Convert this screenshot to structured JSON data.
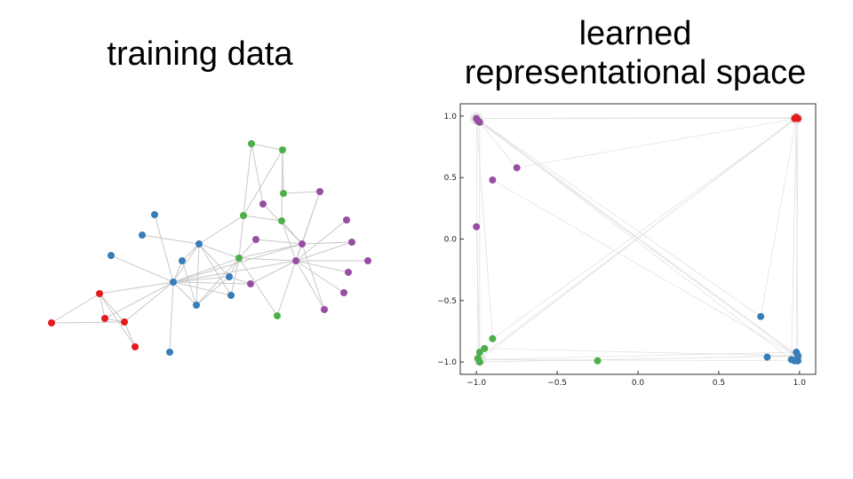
{
  "slide": {
    "left_title": "training data",
    "right_title_line1": "learned",
    "right_title_line2": "representational space"
  },
  "colors": {
    "red": "#e41a1c",
    "blue": "#377eb8",
    "green": "#4daf4a",
    "purple": "#984ea3",
    "edge": "#c8c8c8"
  },
  "chart_data": {
    "type": "scatter",
    "title": "",
    "xlabel": "",
    "ylabel": "",
    "xlim": [
      -1.1,
      1.1
    ],
    "ylim": [
      -1.1,
      1.1
    ],
    "xticks": [
      "-1.0",
      "-0.5",
      "0.0",
      "0.5",
      "1.0"
    ],
    "yticks": [
      "1.0",
      "0.5",
      "0.0",
      "-0.5",
      "-1.0"
    ],
    "series": [
      {
        "color": "red",
        "points": [
          [
            0.98,
            0.99
          ],
          [
            0.99,
            0.98
          ],
          [
            0.97,
            0.98
          ]
        ]
      },
      {
        "color": "purple",
        "points": [
          [
            -1.0,
            0.98
          ],
          [
            -0.99,
            0.96
          ],
          [
            -0.98,
            0.95
          ],
          [
            -0.75,
            0.58
          ],
          [
            -0.9,
            0.48
          ],
          [
            -1.0,
            0.1
          ]
        ]
      },
      {
        "color": "green",
        "points": [
          [
            -0.9,
            -0.81
          ],
          [
            -0.95,
            -0.89
          ],
          [
            -0.98,
            -0.92
          ],
          [
            -0.99,
            -0.97
          ],
          [
            -0.98,
            -1.0
          ],
          [
            -0.25,
            -0.99
          ]
        ]
      },
      {
        "color": "blue",
        "points": [
          [
            0.76,
            -0.63
          ],
          [
            0.8,
            -0.96
          ],
          [
            0.98,
            -0.92
          ],
          [
            0.99,
            -0.95
          ],
          [
            0.97,
            -0.99
          ],
          [
            0.99,
            -0.99
          ],
          [
            0.95,
            -0.98
          ]
        ]
      }
    ]
  }
}
